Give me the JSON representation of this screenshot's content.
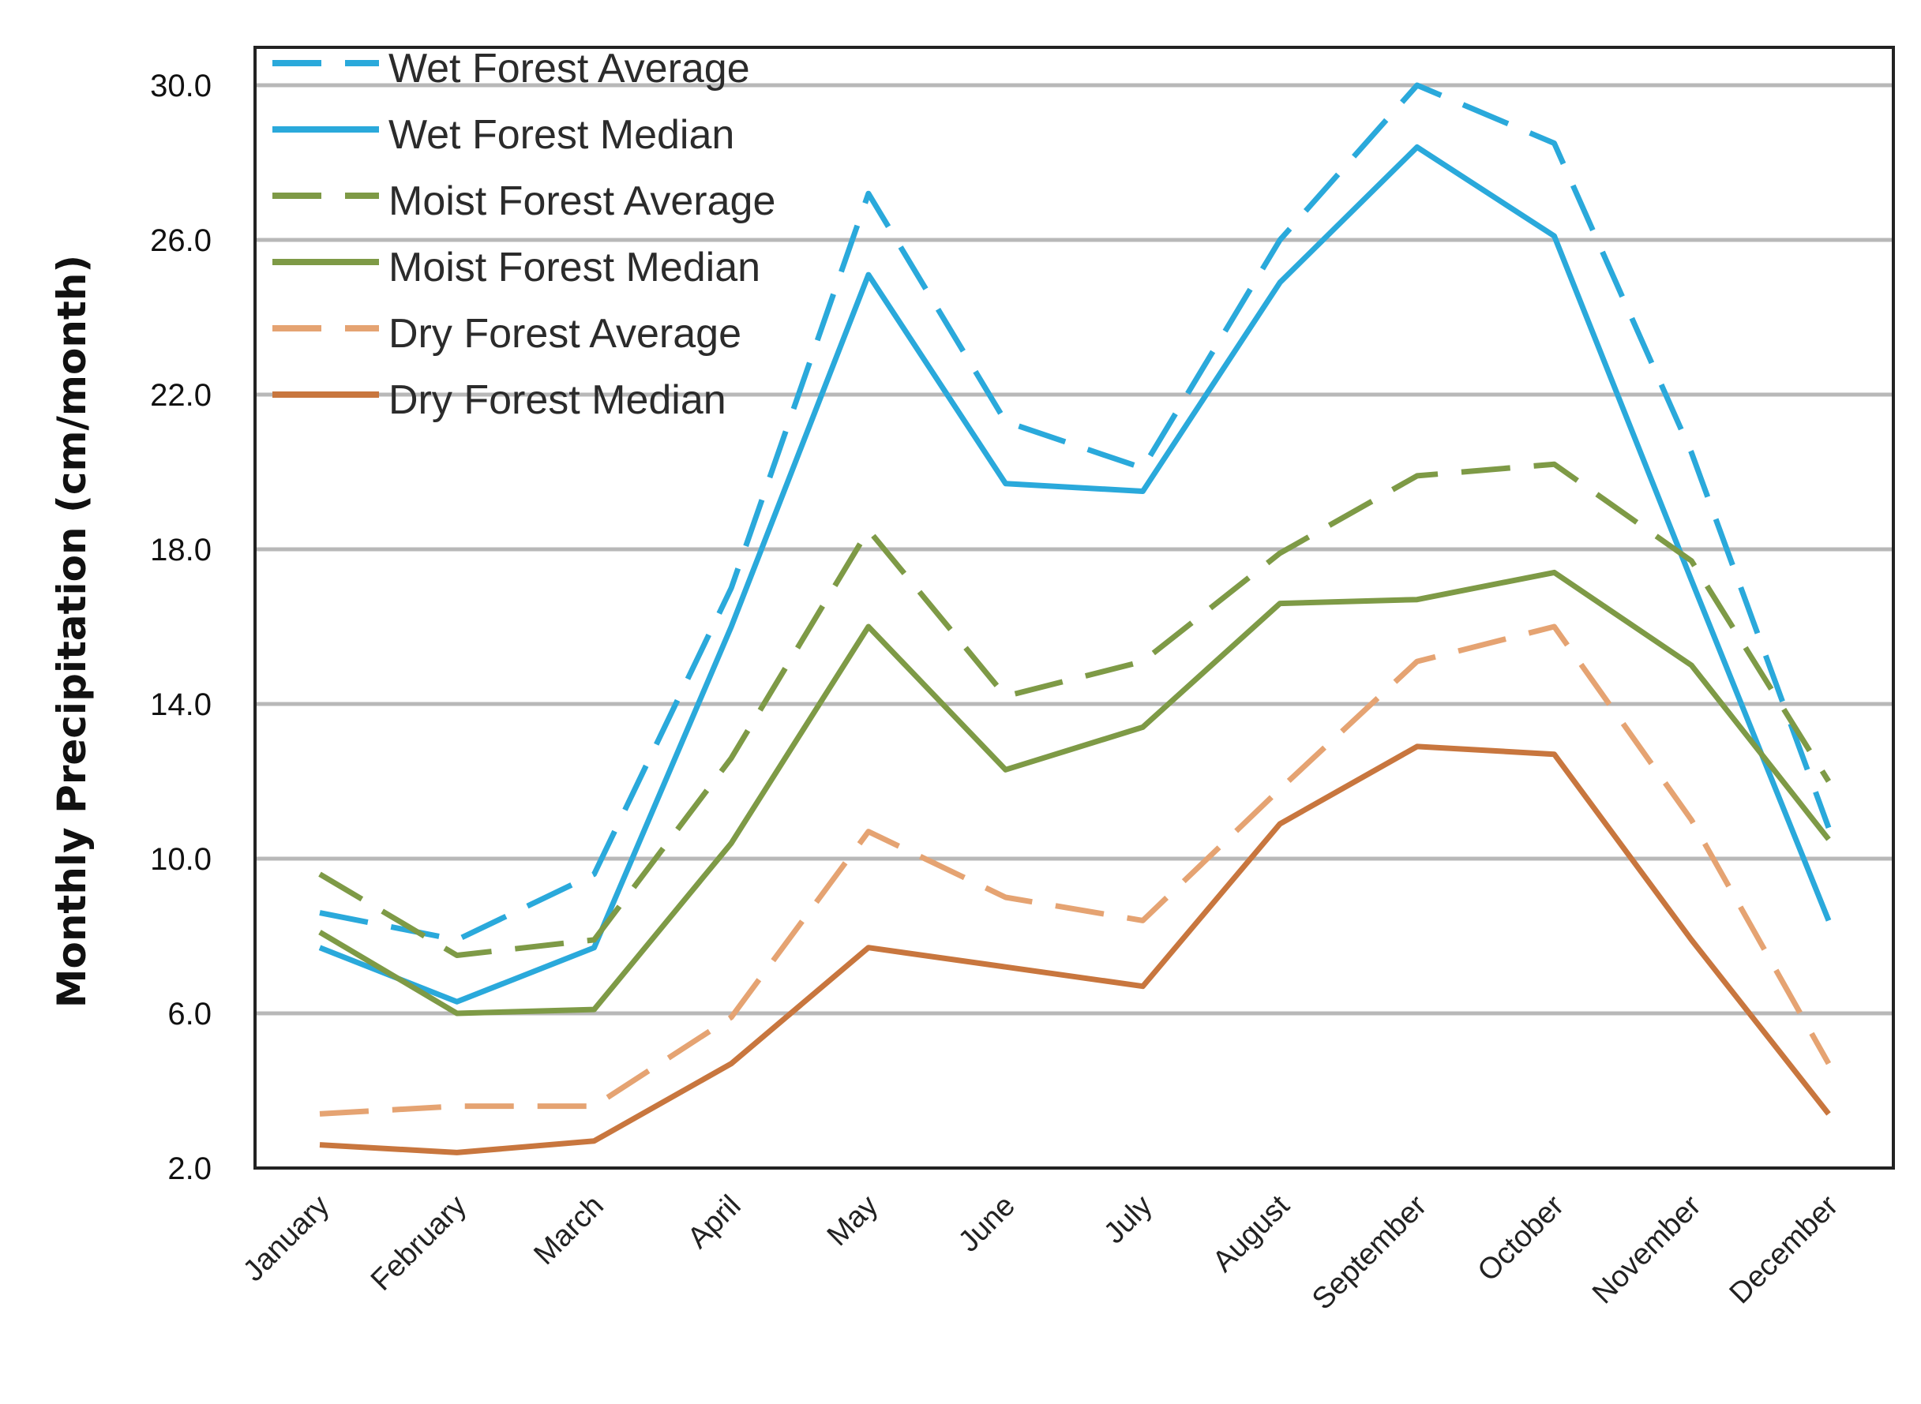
{
  "chart_data": {
    "type": "line",
    "title": "",
    "xlabel": "",
    "ylabel": "Monthly Precipitation (cm/month)",
    "ylim": [
      2.0,
      30.0
    ],
    "yticks": [
      2.0,
      6.0,
      10.0,
      14.0,
      18.0,
      22.0,
      26.0,
      30.0
    ],
    "grid": true,
    "legend_position": "top-left",
    "categories": [
      "January",
      "February",
      "March",
      "April",
      "May",
      "June",
      "July",
      "August",
      "September",
      "October",
      "November",
      "December"
    ],
    "series": [
      {
        "name": "Wet Forest Average",
        "color": "#2AA9DB",
        "dash": true,
        "values": [
          8.6,
          7.9,
          9.6,
          17.0,
          27.2,
          21.3,
          20.1,
          26.0,
          30.0,
          28.5,
          20.5,
          10.8
        ]
      },
      {
        "name": "Wet Forest Median",
        "color": "#2AA9DB",
        "dash": false,
        "values": [
          7.7,
          6.3,
          7.7,
          16.0,
          25.1,
          19.7,
          19.5,
          24.9,
          28.4,
          26.1,
          17.2,
          8.4
        ]
      },
      {
        "name": "Moist Forest Average",
        "color": "#7E9A46",
        "dash": true,
        "values": [
          9.6,
          7.5,
          7.9,
          12.6,
          18.5,
          14.2,
          15.1,
          17.9,
          19.9,
          20.2,
          17.7,
          12.0
        ]
      },
      {
        "name": "Moist Forest Median",
        "color": "#7E9A46",
        "dash": false,
        "values": [
          8.1,
          6.0,
          6.1,
          10.4,
          16.0,
          12.3,
          13.4,
          16.6,
          16.7,
          17.4,
          15.0,
          10.5
        ]
      },
      {
        "name": "Dry Forest Average",
        "color": "#E5A372",
        "dash": true,
        "values": [
          3.4,
          3.6,
          3.6,
          5.9,
          10.7,
          9.0,
          8.4,
          11.8,
          15.1,
          16.0,
          11.0,
          4.7
        ]
      },
      {
        "name": "Dry Forest Median",
        "color": "#C8763E",
        "dash": false,
        "values": [
          2.6,
          2.4,
          2.7,
          4.7,
          7.7,
          7.2,
          6.7,
          10.9,
          12.9,
          12.7,
          7.9,
          3.4
        ]
      }
    ]
  }
}
